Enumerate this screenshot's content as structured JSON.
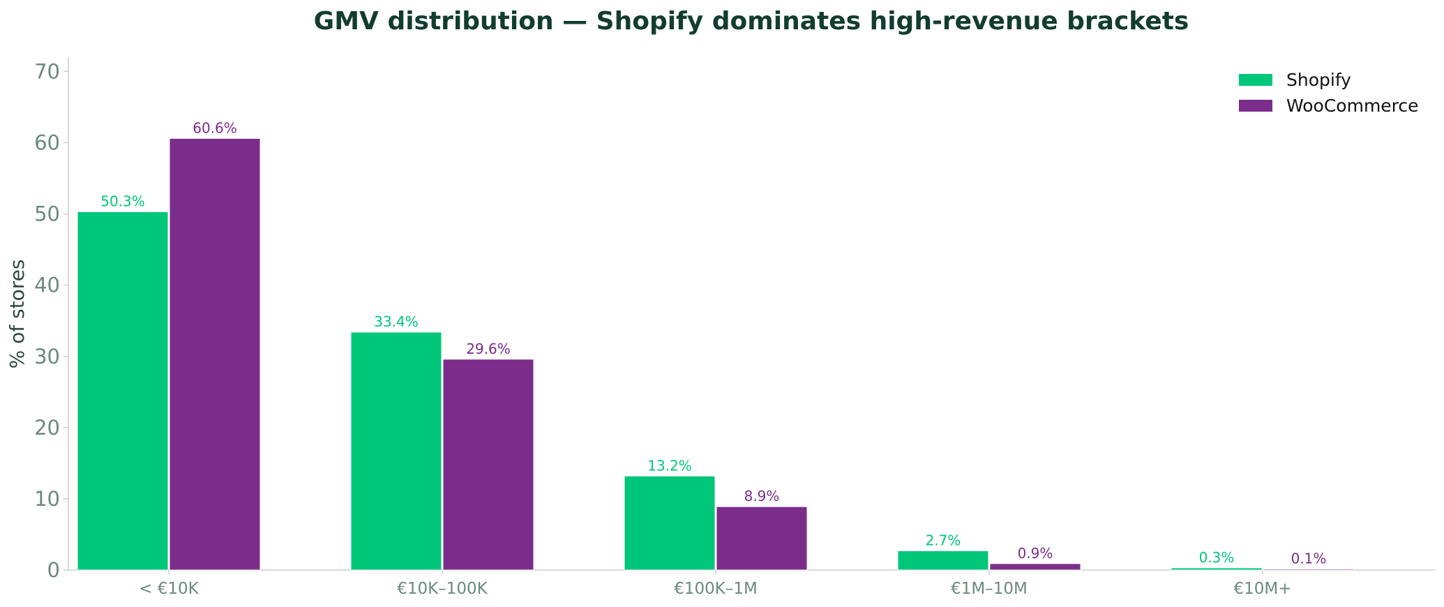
{
  "chart_data": {
    "type": "bar",
    "title": "GMV distribution — Shopify dominates high-revenue brackets",
    "xlabel": "",
    "ylabel": "% of stores",
    "ylim": [
      0,
      72
    ],
    "yticks": [
      0,
      10,
      20,
      30,
      40,
      50,
      60,
      70
    ],
    "categories": [
      "< €10K",
      "€10K–100K",
      "€100K–1M",
      "€1M–10M",
      "€10M+"
    ],
    "series": [
      {
        "name": "Shopify",
        "color": "#00c67a",
        "values": [
          50.3,
          33.4,
          13.2,
          2.7,
          0.3
        ],
        "labels": [
          "50.3%",
          "33.4%",
          "13.2%",
          "2.7%",
          "0.3%"
        ]
      },
      {
        "name": "WooCommerce",
        "color": "#7b2d8b",
        "values": [
          60.6,
          29.6,
          8.9,
          0.9,
          0.1
        ],
        "labels": [
          "60.6%",
          "29.6%",
          "8.9%",
          "0.9%",
          "0.1%"
        ]
      }
    ],
    "legend_position": "top-right",
    "grid": false
  }
}
